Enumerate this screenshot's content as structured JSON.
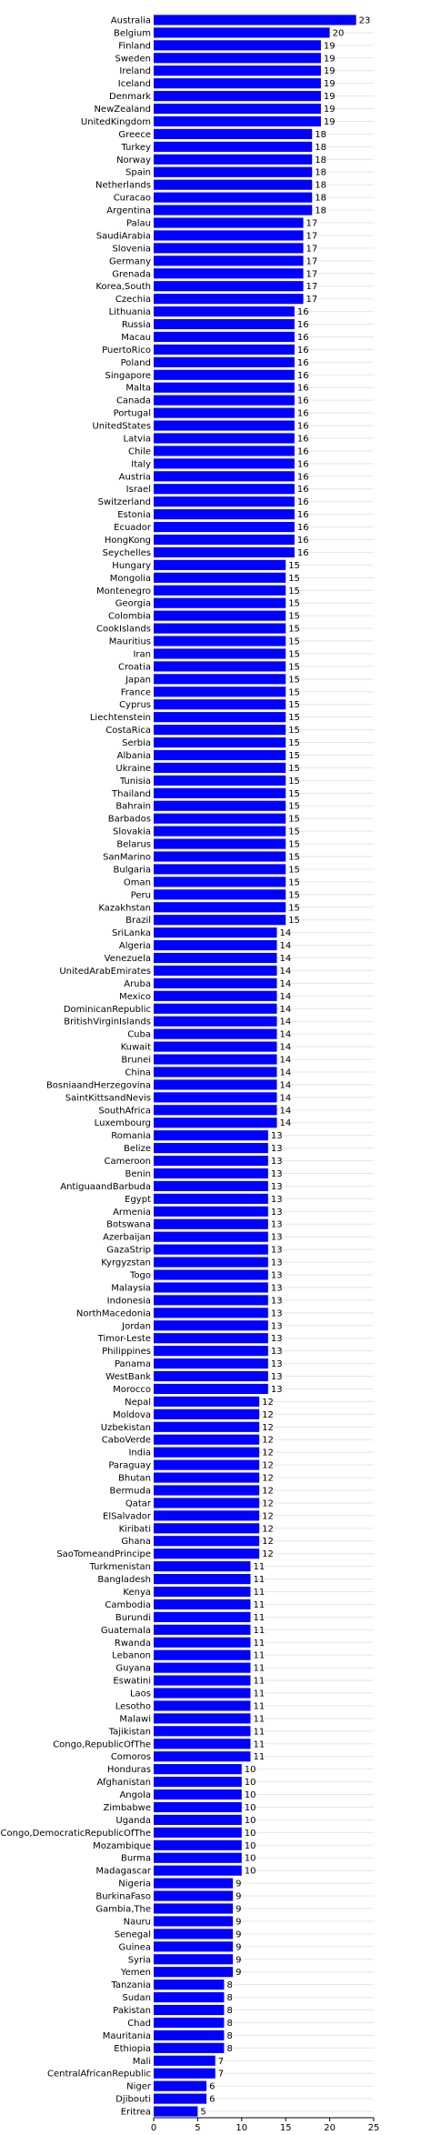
{
  "chart_data": {
    "type": "bar",
    "orientation": "horizontal",
    "xlim": [
      0,
      25
    ],
    "xticks": [
      "0",
      "5",
      "10",
      "15",
      "20",
      "25"
    ],
    "grid": "none",
    "bar_color": "#0000ff",
    "categories": [
      "Australia",
      "Belgium",
      "Finland",
      "Sweden",
      "Ireland",
      "Iceland",
      "Denmark",
      "NewZealand",
      "UnitedKingdom",
      "Greece",
      "Turkey",
      "Norway",
      "Spain",
      "Netherlands",
      "Curacao",
      "Argentina",
      "Palau",
      "SaudiArabia",
      "Slovenia",
      "Germany",
      "Grenada",
      "Korea,South",
      "Czechia",
      "Lithuania",
      "Russia",
      "Macau",
      "PuertoRico",
      "Poland",
      "Singapore",
      "Malta",
      "Canada",
      "Portugal",
      "UnitedStates",
      "Latvia",
      "Chile",
      "Italy",
      "Austria",
      "Israel",
      "Switzerland",
      "Estonia",
      "Ecuador",
      "HongKong",
      "Seychelles",
      "Hungary",
      "Mongolia",
      "Montenegro",
      "Georgia",
      "Colombia",
      "CookIslands",
      "Mauritius",
      "Iran",
      "Croatia",
      "Japan",
      "France",
      "Cyprus",
      "Liechtenstein",
      "CostaRica",
      "Serbia",
      "Albania",
      "Ukraine",
      "Tunisia",
      "Thailand",
      "Bahrain",
      "Barbados",
      "Slovakia",
      "Belarus",
      "SanMarino",
      "Bulgaria",
      "Oman",
      "Peru",
      "Kazakhstan",
      "Brazil",
      "SriLanka",
      "Algeria",
      "Venezuela",
      "UnitedArabEmirates",
      "Aruba",
      "Mexico",
      "DominicanRepublic",
      "BritishVirginIslands",
      "Cuba",
      "Kuwait",
      "Brunei",
      "China",
      "BosniaandHerzegovina",
      "SaintKittsandNevis",
      "SouthAfrica",
      "Luxembourg",
      "Romania",
      "Belize",
      "Cameroon",
      "Benin",
      "AntiguaandBarbuda",
      "Egypt",
      "Armenia",
      "Botswana",
      "Azerbaijan",
      "GazaStrip",
      "Kyrgyzstan",
      "Togo",
      "Malaysia",
      "Indonesia",
      "NorthMacedonia",
      "Jordan",
      "Timor-Leste",
      "Philippines",
      "Panama",
      "WestBank",
      "Morocco",
      "Nepal",
      "Moldova",
      "Uzbekistan",
      "CaboVerde",
      "India",
      "Paraguay",
      "Bhutan",
      "Bermuda",
      "Qatar",
      "ElSalvador",
      "Kiribati",
      "Ghana",
      "SaoTomeandPrincipe",
      "Turkmenistan",
      "Bangladesh",
      "Kenya",
      "Cambodia",
      "Burundi",
      "Guatemala",
      "Rwanda",
      "Lebanon",
      "Guyana",
      "Eswatini",
      "Laos",
      "Lesotho",
      "Malawi",
      "Tajikistan",
      "Congo,RepublicOfThe",
      "Comoros",
      "Honduras",
      "Afghanistan",
      "Angola",
      "Zimbabwe",
      "Uganda",
      "Congo,DemocraticRepublicOfThe",
      "Mozambique",
      "Burma",
      "Madagascar",
      "Nigeria",
      "BurkinaFaso",
      "Gambia,The",
      "Nauru",
      "Senegal",
      "Guinea",
      "Syria",
      "Yemen",
      "Tanzania",
      "Sudan",
      "Pakistan",
      "Chad",
      "Mauritania",
      "Ethiopia",
      "Mali",
      "CentralAfricanRepublic",
      "Niger",
      "Djibouti",
      "Eritrea"
    ],
    "values": [
      23,
      20,
      19,
      19,
      19,
      19,
      19,
      19,
      19,
      18,
      18,
      18,
      18,
      18,
      18,
      18,
      17,
      17,
      17,
      17,
      17,
      17,
      17,
      16,
      16,
      16,
      16,
      16,
      16,
      16,
      16,
      16,
      16,
      16,
      16,
      16,
      16,
      16,
      16,
      16,
      16,
      16,
      16,
      15,
      15,
      15,
      15,
      15,
      15,
      15,
      15,
      15,
      15,
      15,
      15,
      15,
      15,
      15,
      15,
      15,
      15,
      15,
      15,
      15,
      15,
      15,
      15,
      15,
      15,
      15,
      15,
      15,
      14,
      14,
      14,
      14,
      14,
      14,
      14,
      14,
      14,
      14,
      14,
      14,
      14,
      14,
      14,
      14,
      13,
      13,
      13,
      13,
      13,
      13,
      13,
      13,
      13,
      13,
      13,
      13,
      13,
      13,
      13,
      13,
      13,
      13,
      13,
      13,
      13,
      12,
      12,
      12,
      12,
      12,
      12,
      12,
      12,
      12,
      12,
      12,
      12,
      12,
      11,
      11,
      11,
      11,
      11,
      11,
      11,
      11,
      11,
      11,
      11,
      11,
      11,
      11,
      11,
      11,
      10,
      10,
      10,
      10,
      10,
      10,
      10,
      10,
      10,
      9,
      9,
      9,
      9,
      9,
      9,
      9,
      9,
      8,
      8,
      8,
      8,
      8,
      8,
      7,
      7,
      6,
      6,
      5
    ]
  }
}
